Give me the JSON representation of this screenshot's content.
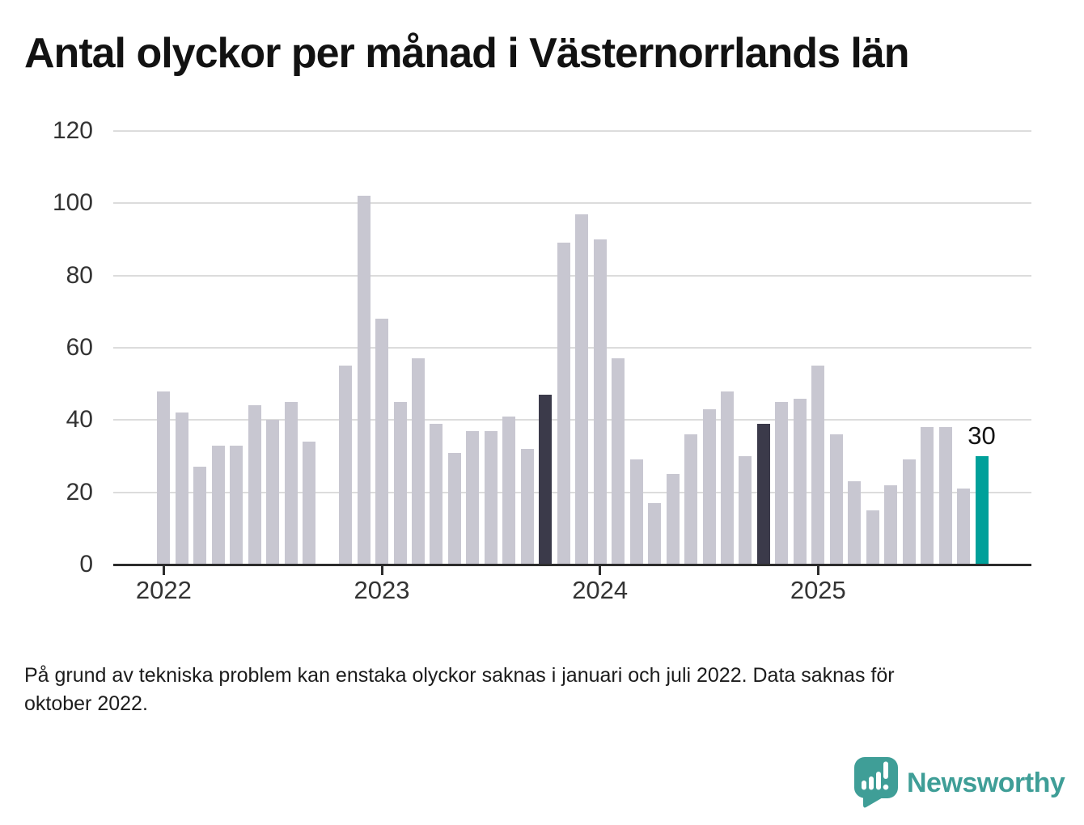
{
  "chart_data": {
    "type": "bar",
    "title": "Antal olyckor per månad i Västernorrlands län",
    "xlabel": "",
    "ylabel": "",
    "ylim": [
      0,
      120
    ],
    "grid": true,
    "legend": false,
    "y_ticks": [
      0,
      20,
      40,
      60,
      80,
      100,
      120
    ],
    "x_ticks": [
      "2022",
      "2023",
      "2024",
      "2025"
    ],
    "categories": [
      "2022-01",
      "2022-02",
      "2022-03",
      "2022-04",
      "2022-05",
      "2022-06",
      "2022-07",
      "2022-08",
      "2022-09",
      "2022-10",
      "2022-11",
      "2022-12",
      "2023-01",
      "2023-02",
      "2023-03",
      "2023-04",
      "2023-05",
      "2023-06",
      "2023-07",
      "2023-08",
      "2023-09",
      "2023-10",
      "2023-11",
      "2023-12",
      "2024-01",
      "2024-02",
      "2024-03",
      "2024-04",
      "2024-05",
      "2024-06",
      "2024-07",
      "2024-08",
      "2024-09",
      "2024-10",
      "2024-11",
      "2024-12",
      "2025-01",
      "2025-02",
      "2025-03",
      "2025-04",
      "2025-05",
      "2025-06",
      "2025-07",
      "2025-08",
      "2025-09",
      "2025-10"
    ],
    "values": [
      48,
      42,
      27,
      33,
      33,
      44,
      40,
      45,
      34,
      null,
      55,
      102,
      68,
      45,
      57,
      39,
      31,
      37,
      37,
      41,
      32,
      47,
      89,
      97,
      90,
      57,
      29,
      17,
      25,
      36,
      43,
      48,
      30,
      39,
      45,
      46,
      55,
      36,
      23,
      15,
      22,
      29,
      38,
      38,
      21,
      30
    ],
    "missing_months": [
      "2022-10"
    ],
    "highlighted_months": [
      "2023-10",
      "2024-10"
    ],
    "latest_month": "2025-10",
    "annotation": {
      "month": "2025-10",
      "label": "30"
    },
    "colors": {
      "default": "#c8c7d1",
      "highlight": "#3b3a4a",
      "latest": "#00a09a",
      "gridline": "#dcdcdc",
      "axis": "#2d2d2d"
    }
  },
  "footnote": {
    "line1": "På grund av tekniska problem kan enstaka olyckor saknas i januari och juli 2022. Data saknas för",
    "line2": "oktober 2022."
  },
  "logo": {
    "text": "Newsworthy",
    "icon": "newsworthy-speech-bubble-bar-chart-icon",
    "color": "#3f9e97"
  }
}
